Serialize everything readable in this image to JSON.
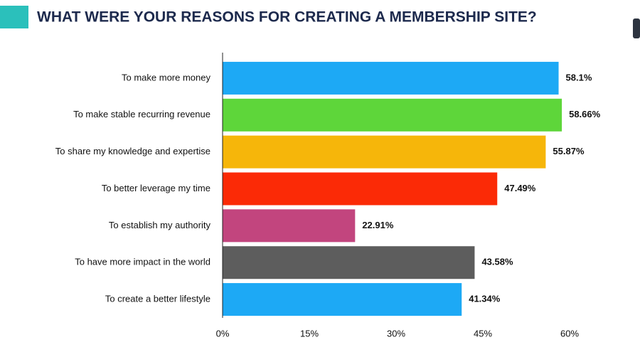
{
  "chart_data": {
    "type": "bar",
    "orientation": "horizontal",
    "title": "WHAT WERE YOUR REASONS FOR CREATING A MEMBERSHIP SITE?",
    "categories": [
      "To make more money",
      "To make stable recurring revenue",
      "To share my knowledge and expertise",
      "To better leverage my time",
      "To establish my authority",
      "To have more impact in the world",
      "To create a better lifestyle"
    ],
    "values": [
      58.1,
      58.66,
      55.87,
      47.49,
      22.91,
      43.58,
      41.34
    ],
    "value_labels": [
      "58.1%",
      "58.66%",
      "55.87%",
      "47.49%",
      "22.91%",
      "43.58%",
      "41.34%"
    ],
    "colors": [
      "#1da9f5",
      "#5ed63a",
      "#f6b60a",
      "#fb2a06",
      "#c2457e",
      "#5d5d5d",
      "#1da9f5"
    ],
    "xlim": [
      0,
      60
    ],
    "xticks": [
      {
        "value": 0,
        "label": "0%"
      },
      {
        "value": 15,
        "label": "15%"
      },
      {
        "value": 30,
        "label": "30%"
      },
      {
        "value": 45,
        "label": "45%"
      },
      {
        "value": 60,
        "label": "60%"
      }
    ]
  }
}
